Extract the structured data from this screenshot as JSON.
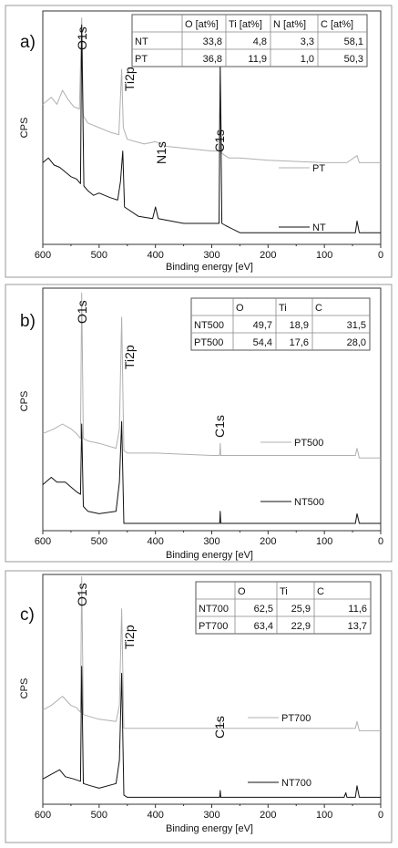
{
  "chart_data": [
    {
      "type": "line",
      "panel_label": "a)",
      "xlabel": "Binding energy [eV]",
      "ylabel": "CPS",
      "xlim": [
        600,
        0
      ],
      "x_ticks": [
        "600",
        "500",
        "400",
        "300",
        "200",
        "100",
        "0"
      ],
      "series": [
        {
          "name": "PT",
          "color": "#b0b0b0",
          "points": [
            [
              600,
              0.6
            ],
            [
              585,
              0.63
            ],
            [
              575,
              0.6
            ],
            [
              565,
              0.66
            ],
            [
              555,
              0.62
            ],
            [
              545,
              0.59
            ],
            [
              535,
              0.58
            ],
            [
              531,
              0.97
            ],
            [
              528,
              0.55
            ],
            [
              520,
              0.52
            ],
            [
              500,
              0.5
            ],
            [
              480,
              0.48
            ],
            [
              465,
              0.47
            ],
            [
              460,
              0.75
            ],
            [
              457,
              0.5
            ],
            [
              450,
              0.45
            ],
            [
              420,
              0.43
            ],
            [
              400,
              0.44
            ],
            [
              380,
              0.42
            ],
            [
              300,
              0.4
            ],
            [
              287,
              0.4
            ],
            [
              285,
              0.7
            ],
            [
              282,
              0.39
            ],
            [
              270,
              0.37
            ],
            [
              250,
              0.37
            ],
            [
              200,
              0.36
            ],
            [
              100,
              0.35
            ],
            [
              60,
              0.35
            ],
            [
              42,
              0.38
            ],
            [
              38,
              0.35
            ],
            [
              0,
              0.35
            ]
          ]
        },
        {
          "name": "NT",
          "color": "#111111",
          "points": [
            [
              600,
              0.35
            ],
            [
              590,
              0.37
            ],
            [
              580,
              0.34
            ],
            [
              570,
              0.33
            ],
            [
              560,
              0.31
            ],
            [
              550,
              0.29
            ],
            [
              540,
              0.28
            ],
            [
              533,
              0.26
            ],
            [
              531,
              0.94
            ],
            [
              527,
              0.25
            ],
            [
              520,
              0.23
            ],
            [
              510,
              0.21
            ],
            [
              500,
              0.22
            ],
            [
              480,
              0.2
            ],
            [
              467,
              0.19
            ],
            [
              462,
              0.27
            ],
            [
              458,
              0.4
            ],
            [
              455,
              0.16
            ],
            [
              430,
              0.12
            ],
            [
              405,
              0.11
            ],
            [
              400,
              0.16
            ],
            [
              395,
              0.11
            ],
            [
              350,
              0.09
            ],
            [
              300,
              0.09
            ],
            [
              287,
              0.09
            ],
            [
              285,
              0.77
            ],
            [
              282,
              0.09
            ],
            [
              275,
              0.08
            ],
            [
              250,
              0.05
            ],
            [
              200,
              0.05
            ],
            [
              150,
              0.05
            ],
            [
              100,
              0.05
            ],
            [
              60,
              0.05
            ],
            [
              45,
              0.05
            ],
            [
              42,
              0.1
            ],
            [
              38,
              0.05
            ],
            [
              0,
              0.05
            ]
          ]
        }
      ],
      "peak_labels": [
        "O1s",
        "Ti2p",
        "N1s",
        "C1s"
      ],
      "table": {
        "headers": [
          "",
          "O [at%]",
          "Ti [at%]",
          "N [at%]",
          "C [at%]"
        ],
        "rows": [
          [
            "NT",
            "33,8",
            "4,8",
            "3,3",
            "58,1"
          ],
          [
            "PT",
            "36,8",
            "11,9",
            "1,0",
            "50,3"
          ]
        ]
      }
    },
    {
      "type": "line",
      "panel_label": "b)",
      "xlabel": "Binding energy [eV]",
      "ylabel": "CPS",
      "xlim": [
        600,
        0
      ],
      "x_ticks": [
        "600",
        "500",
        "400",
        "300",
        "200",
        "100",
        "0"
      ],
      "series": [
        {
          "name": "PT500",
          "color": "#b0b0b0",
          "points": [
            [
              600,
              0.4
            ],
            [
              580,
              0.42
            ],
            [
              565,
              0.44
            ],
            [
              550,
              0.42
            ],
            [
              540,
              0.4
            ],
            [
              533,
              0.38
            ],
            [
              531,
              0.98
            ],
            [
              528,
              0.38
            ],
            [
              520,
              0.37
            ],
            [
              500,
              0.36
            ],
            [
              470,
              0.34
            ],
            [
              464,
              0.42
            ],
            [
              460,
              0.88
            ],
            [
              456,
              0.33
            ],
            [
              450,
              0.32
            ],
            [
              400,
              0.32
            ],
            [
              300,
              0.31
            ],
            [
              286,
              0.31
            ],
            [
              285,
              0.36
            ],
            [
              284,
              0.31
            ],
            [
              200,
              0.31
            ],
            [
              100,
              0.31
            ],
            [
              45,
              0.31
            ],
            [
              42,
              0.34
            ],
            [
              38,
              0.3
            ],
            [
              0,
              0.3
            ]
          ]
        },
        {
          "name": "NT500",
          "color": "#111111",
          "points": [
            [
              600,
              0.19
            ],
            [
              585,
              0.22
            ],
            [
              575,
              0.2
            ],
            [
              560,
              0.2
            ],
            [
              550,
              0.18
            ],
            [
              540,
              0.16
            ],
            [
              533,
              0.15
            ],
            [
              531,
              0.44
            ],
            [
              528,
              0.1
            ],
            [
              520,
              0.08
            ],
            [
              500,
              0.07
            ],
            [
              470,
              0.08
            ],
            [
              464,
              0.2
            ],
            [
              460,
              0.45
            ],
            [
              456,
              0.03
            ],
            [
              450,
              0.03
            ],
            [
              400,
              0.03
            ],
            [
              300,
              0.03
            ],
            [
              286,
              0.03
            ],
            [
              285,
              0.08
            ],
            [
              284,
              0.03
            ],
            [
              200,
              0.03
            ],
            [
              100,
              0.03
            ],
            [
              45,
              0.03
            ],
            [
              42,
              0.07
            ],
            [
              38,
              0.03
            ],
            [
              0,
              0.03
            ]
          ]
        }
      ],
      "peak_labels": [
        "O1s",
        "Ti2p",
        "C1s"
      ],
      "table": {
        "headers": [
          "",
          "O",
          "Ti",
          "C"
        ],
        "rows": [
          [
            "NT500",
            "49,7",
            "18,9",
            "31,5"
          ],
          [
            "PT500",
            "54,4",
            "17,6",
            "28,0"
          ]
        ]
      }
    },
    {
      "type": "line",
      "panel_label": "c)",
      "xlabel": "Binding energy [eV]",
      "ylabel": "CPS",
      "xlim": [
        600,
        0
      ],
      "x_ticks": [
        "600",
        "500",
        "400",
        "300",
        "200",
        "100",
        "0"
      ],
      "series": [
        {
          "name": "PT700",
          "color": "#b0b0b0",
          "points": [
            [
              600,
              0.41
            ],
            [
              585,
              0.43
            ],
            [
              565,
              0.47
            ],
            [
              550,
              0.43
            ],
            [
              540,
              0.42
            ],
            [
              533,
              0.4
            ],
            [
              531,
              0.99
            ],
            [
              528,
              0.39
            ],
            [
              515,
              0.38
            ],
            [
              500,
              0.37
            ],
            [
              470,
              0.36
            ],
            [
              464,
              0.43
            ],
            [
              460,
              0.85
            ],
            [
              456,
              0.33
            ],
            [
              450,
              0.33
            ],
            [
              400,
              0.33
            ],
            [
              300,
              0.33
            ],
            [
              286,
              0.33
            ],
            [
              285,
              0.37
            ],
            [
              284,
              0.33
            ],
            [
              200,
              0.33
            ],
            [
              100,
              0.33
            ],
            [
              45,
              0.33
            ],
            [
              42,
              0.36
            ],
            [
              38,
              0.32
            ],
            [
              0,
              0.32
            ]
          ]
        },
        {
          "name": "NT700",
          "color": "#111111",
          "points": [
            [
              600,
              0.11
            ],
            [
              585,
              0.13
            ],
            [
              570,
              0.15
            ],
            [
              560,
              0.12
            ],
            [
              545,
              0.11
            ],
            [
              533,
              0.1
            ],
            [
              531,
              0.6
            ],
            [
              528,
              0.09
            ],
            [
              515,
              0.08
            ],
            [
              500,
              0.07
            ],
            [
              470,
              0.09
            ],
            [
              464,
              0.19
            ],
            [
              460,
              0.57
            ],
            [
              456,
              0.04
            ],
            [
              450,
              0.03
            ],
            [
              400,
              0.03
            ],
            [
              300,
              0.03
            ],
            [
              286,
              0.03
            ],
            [
              285,
              0.06
            ],
            [
              284,
              0.03
            ],
            [
              200,
              0.03
            ],
            [
              100,
              0.03
            ],
            [
              65,
              0.03
            ],
            [
              62,
              0.05
            ],
            [
              60,
              0.03
            ],
            [
              45,
              0.03
            ],
            [
              42,
              0.08
            ],
            [
              38,
              0.03
            ],
            [
              0,
              0.03
            ]
          ]
        }
      ],
      "peak_labels": [
        "O1s",
        "Ti2p",
        "C1s"
      ],
      "table": {
        "headers": [
          "",
          "O",
          "Ti",
          "C"
        ],
        "rows": [
          [
            "NT700",
            "62,5",
            "25,9",
            "11,6"
          ],
          [
            "PT700",
            "63,4",
            "22,9",
            "13,7"
          ]
        ]
      }
    }
  ]
}
